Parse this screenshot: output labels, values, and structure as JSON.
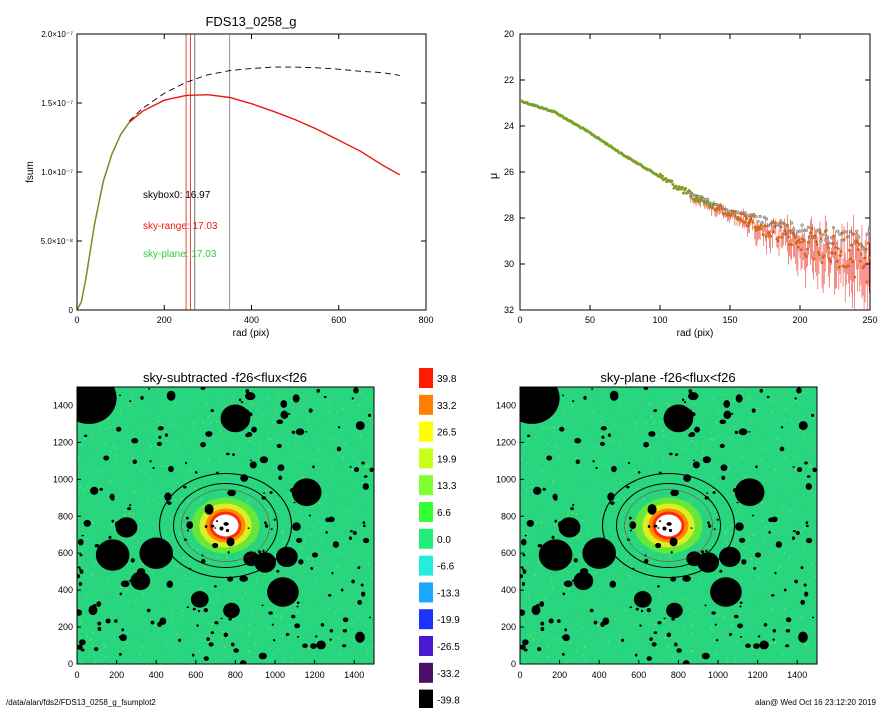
{
  "footer": {
    "path": "/data/alan/fds2/FDS13_0258_g_fsumplot2",
    "stamp": "alan@  Wed Oct 16 23:12:20 2019"
  },
  "colors": {
    "background": "#ffffff",
    "sky_range": "#e8190f",
    "sky_plane": "#33cc33",
    "model_dashed": "#000000",
    "map_bg": "#22dd77",
    "mask": "#000000",
    "galaxy_core": "#ffffff"
  },
  "chart_data": [
    {
      "type": "line",
      "title": "FDS13_0258_g",
      "xlabel": "rad (pix)",
      "ylabel": "fsum",
      "xlim": [
        0,
        800
      ],
      "ylim": [
        0,
        2e-07
      ],
      "xticks": [
        "0",
        "200",
        "400",
        "600",
        "800"
      ],
      "yticks": [
        "0",
        "5.0×10⁻⁸",
        "1.0×10⁻⁷",
        "1.5×10⁻⁷",
        "2.0×10⁻⁷"
      ],
      "annotations": [
        {
          "text": "skybox0: 16.97",
          "color": "#000000"
        },
        {
          "text": "sky-range: 17.03",
          "color": "#e8190f"
        },
        {
          "text": "sky-plane: 17.03",
          "color": "#33cc33"
        }
      ],
      "vlines": [
        {
          "x": 250,
          "color": "#e8190f"
        },
        {
          "x": 260,
          "color": "#e8190f"
        },
        {
          "x": 270,
          "color": "#555555"
        },
        {
          "x": 350,
          "color": "#777777"
        }
      ],
      "series": [
        {
          "color": "#e8190f",
          "style": "solid",
          "x": [
            0,
            10,
            20,
            40,
            60,
            80,
            100,
            120,
            150,
            200,
            250,
            300,
            350,
            400,
            450,
            500,
            550,
            600,
            650,
            700,
            740
          ],
          "y": [
            0,
            6e-09,
            2.2e-08,
            6.2e-08,
            9.3e-08,
            1.13e-07,
            1.27e-07,
            1.36e-07,
            1.44e-07,
            1.52e-07,
            1.555e-07,
            1.56e-07,
            1.54e-07,
            1.495e-07,
            1.44e-07,
            1.38e-07,
            1.31e-07,
            1.23e-07,
            1.15e-07,
            1.05e-07,
            9.8e-08
          ]
        },
        {
          "color": "#000000",
          "style": "dashed",
          "x": [
            120,
            150,
            200,
            250,
            300,
            350,
            400,
            450,
            500,
            550,
            600,
            650,
            700,
            740
          ],
          "y": [
            1.37e-07,
            1.46e-07,
            1.57e-07,
            1.65e-07,
            1.705e-07,
            1.735e-07,
            1.75e-07,
            1.76e-07,
            1.76e-07,
            1.755e-07,
            1.745e-07,
            1.73e-07,
            1.72e-07,
            1.7e-07
          ]
        }
      ]
    },
    {
      "type": "scatter",
      "title": "",
      "xlabel": "rad (pix)",
      "ylabel": "μ",
      "xlim": [
        0,
        250
      ],
      "ylim": [
        32,
        20
      ],
      "xticks": [
        "0",
        "50",
        "100",
        "150",
        "200",
        "250"
      ],
      "yticks": [
        "20",
        "22",
        "24",
        "26",
        "28",
        "30",
        "32"
      ],
      "profile": {
        "x": [
          0,
          25,
          50,
          75,
          100,
          125,
          150,
          175,
          200,
          225,
          250
        ],
        "y": [
          22.9,
          23.4,
          24.3,
          25.3,
          26.2,
          27.1,
          27.8,
          28.4,
          29.0,
          29.4,
          29.8
        ]
      }
    },
    {
      "type": "heatmap",
      "title": "sky-subtracted -f26<flux<f26",
      "xlim": [
        0,
        1500
      ],
      "ylim": [
        0,
        1500
      ],
      "xticks": [
        "0",
        "200",
        "400",
        "600",
        "800",
        "1000",
        "1200",
        "1400"
      ],
      "yticks": [
        "0",
        "200",
        "400",
        "600",
        "800",
        "1000",
        "1200",
        "1400"
      ]
    },
    {
      "type": "heatmap",
      "title": "sky-plane -f26<flux<f26",
      "xlim": [
        0,
        1500
      ],
      "ylim": [
        0,
        1500
      ],
      "xticks": [
        "0",
        "200",
        "400",
        "600",
        "800",
        "1000",
        "1200",
        "1400"
      ],
      "yticks": [
        "0",
        "200",
        "400",
        "600",
        "800",
        "1000",
        "1200",
        "1400"
      ]
    }
  ],
  "colorbar": {
    "labels": [
      "39.8",
      "33.2",
      "26.5",
      "19.9",
      "13.3",
      "6.6",
      "0.0",
      "-6.6",
      "-13.3",
      "-19.9",
      "-26.5",
      "-33.2",
      "-39.8"
    ],
    "colors": [
      "#ff1a00",
      "#ff8000",
      "#ffff00",
      "#c8ff1a",
      "#80ff33",
      "#33ff33",
      "#22ee77",
      "#22eedd",
      "#1aa8ff",
      "#1a33ff",
      "#4a1ad0",
      "#4a106a",
      "#000000"
    ]
  },
  "mask_objects": [
    {
      "x": 60,
      "y": 1440,
      "r": 140
    },
    {
      "x": 800,
      "y": 1330,
      "r": 75
    },
    {
      "x": 1160,
      "y": 930,
      "r": 75
    },
    {
      "x": 250,
      "y": 740,
      "r": 55
    },
    {
      "x": 180,
      "y": 590,
      "r": 85
    },
    {
      "x": 400,
      "y": 600,
      "r": 85
    },
    {
      "x": 320,
      "y": 450,
      "r": 50
    },
    {
      "x": 1060,
      "y": 580,
      "r": 55
    },
    {
      "x": 950,
      "y": 550,
      "r": 55
    },
    {
      "x": 1040,
      "y": 390,
      "r": 80
    },
    {
      "x": 620,
      "y": 350,
      "r": 45
    },
    {
      "x": 780,
      "y": 290,
      "r": 42
    },
    {
      "x": 880,
      "y": 570,
      "r": 40
    }
  ]
}
